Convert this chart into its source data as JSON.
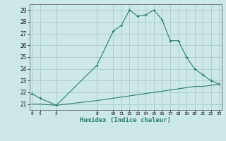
{
  "x_main": [
    0,
    1,
    3,
    8,
    10,
    11,
    12,
    13,
    14,
    15,
    16,
    17,
    18,
    19,
    20,
    21,
    22,
    23
  ],
  "y_main": [
    21.9,
    21.5,
    20.9,
    24.3,
    27.2,
    27.7,
    29.0,
    28.5,
    28.6,
    29.0,
    28.2,
    26.4,
    26.4,
    25.0,
    24.0,
    23.5,
    23.0,
    22.7
  ],
  "x_base": [
    0,
    1,
    3,
    8,
    10,
    11,
    12,
    13,
    14,
    15,
    16,
    17,
    18,
    19,
    20,
    21,
    22,
    23
  ],
  "y_base": [
    21.0,
    21.0,
    20.9,
    21.3,
    21.5,
    21.6,
    21.7,
    21.8,
    21.9,
    22.0,
    22.1,
    22.2,
    22.3,
    22.4,
    22.5,
    22.5,
    22.6,
    22.7
  ],
  "color": "#2e7d6e",
  "bg_color": "#cce8e8",
  "grid_color": "#aacccc",
  "xlabel": "Humidex (Indice chaleur)",
  "xticks": [
    0,
    1,
    3,
    8,
    10,
    11,
    12,
    13,
    14,
    15,
    16,
    17,
    18,
    19,
    20,
    21,
    22,
    23
  ],
  "yticks": [
    21,
    22,
    23,
    24,
    25,
    26,
    27,
    28,
    29
  ],
  "xlim": [
    -0.3,
    23.3
  ],
  "ylim": [
    20.5,
    29.5
  ]
}
